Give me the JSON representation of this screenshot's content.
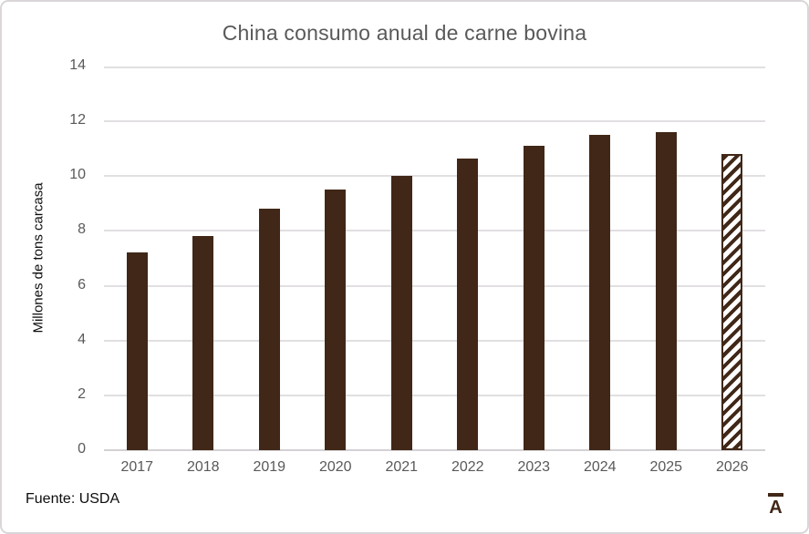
{
  "chart_data": {
    "type": "bar",
    "title": "China consumo anual de carne bovina",
    "xlabel": "",
    "ylabel": "Millones de tons carcasa",
    "categories": [
      "2017",
      "2018",
      "2019",
      "2020",
      "2021",
      "2022",
      "2023",
      "2024",
      "2025",
      "2026"
    ],
    "values": [
      7.2,
      7.8,
      8.8,
      9.5,
      10.0,
      10.65,
      11.1,
      11.5,
      11.6,
      10.8
    ],
    "ylim": [
      0,
      14
    ],
    "yticks": [
      0,
      2,
      4,
      6,
      8,
      10,
      12,
      14
    ],
    "grid": true,
    "legend_position": "none",
    "bar_color": "#402717",
    "hatched_categories": [
      "2026"
    ]
  },
  "footer": {
    "source": "Fuente: USDA",
    "logo_letter": "A"
  },
  "colors": {
    "accent_brown": "#402717",
    "axis_text": "#595959",
    "gridline": "#E2DFE2",
    "card_border": "#DAD6D9"
  }
}
